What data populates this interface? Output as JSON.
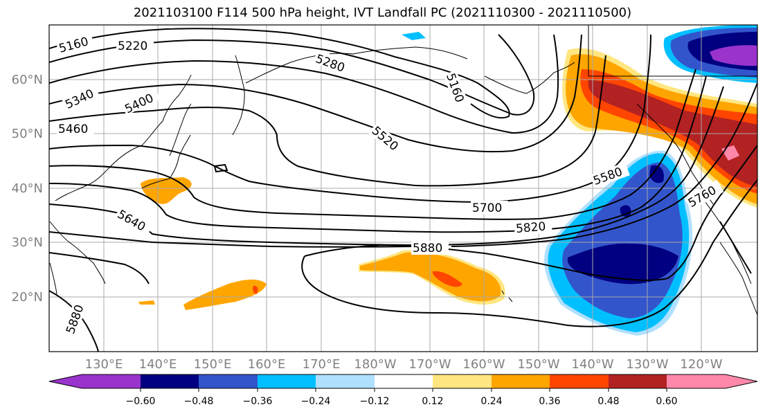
{
  "title": "2021103100 F114 500 hPa height, IVT Landfall PC (2021110300 - 2021110500)",
  "longitude_labels": [
    "130°E",
    "140°E",
    "150°E",
    "160°E",
    "170°E",
    "180°W",
    "170°W",
    "160°W",
    "150°W",
    "140°W",
    "130°W",
    "120°W"
  ],
  "latitude_labels": [
    "60°N",
    "50°N",
    "40°N",
    "30°N",
    "20°N"
  ],
  "contour_labels": [
    "5160",
    "5220",
    "5280",
    "5340",
    "5400",
    "5460",
    "5520",
    "5160",
    "5580",
    "5640",
    "5700",
    "5820",
    "5880",
    "5760",
    "5880"
  ],
  "colorbar": {
    "ticks": [
      "−0.60",
      "−0.48",
      "−0.36",
      "−0.24",
      "−0.12",
      "0.12",
      "0.24",
      "0.36",
      "0.48",
      "0.60"
    ],
    "colors": [
      "#9933cc",
      "#000080",
      "#3355cc",
      "#00bfff",
      "#b0e0ff",
      "#ffffff",
      "#ffe680",
      "#ffa500",
      "#ff4500",
      "#b22222",
      "#ff88aa"
    ]
  }
}
